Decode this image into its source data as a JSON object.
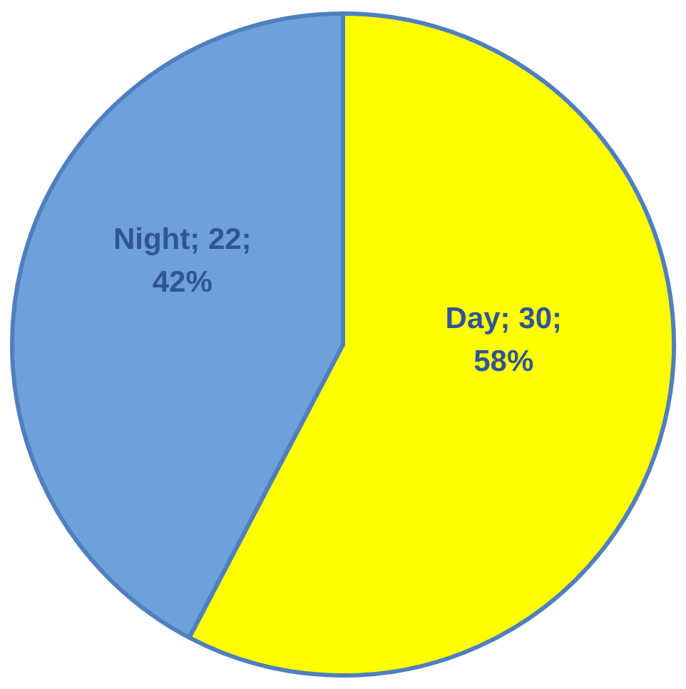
{
  "chart_data": {
    "type": "pie",
    "categories": [
      "Day",
      "Night"
    ],
    "values": [
      30,
      22
    ],
    "colors": [
      "#ffff00",
      "#6fa0dc"
    ],
    "value_labels": [
      "30; 58%",
      "22; 42%"
    ],
    "legend": false
  }
}
